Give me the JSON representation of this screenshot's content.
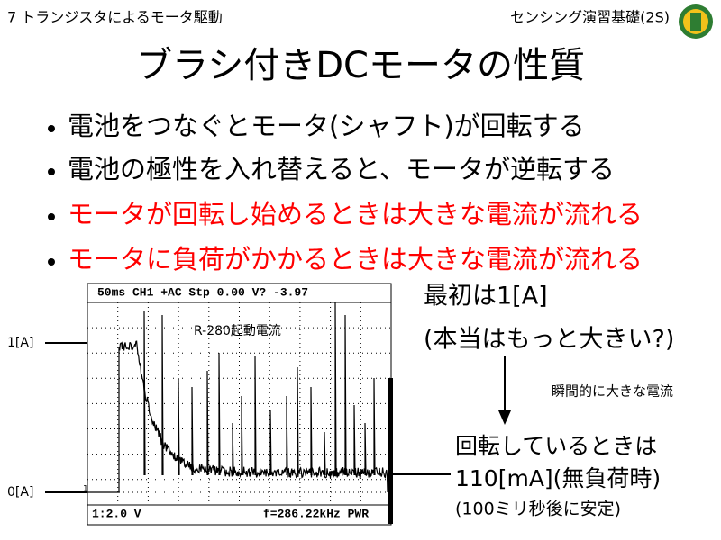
{
  "header": {
    "chapter": "7 トランジスタによるモータ駆動",
    "course": "センシング演習基礎(2S)"
  },
  "title": "ブラシ付きDCモータの性質",
  "bullets": [
    "電池をつなぐとモータ(シャフト)が回転する",
    "電池の極性を入れ替えると、モータが逆転する",
    "モータが回転し始めるときは大きな電流が流れる",
    "モータに負荷がかかるときは大きな電流が流れる"
  ],
  "scope": {
    "status_top": "50ms CH1 +AC  Stp   0.00 V?  -3.97",
    "status_bottom_left": "1:2.0 V",
    "status_bottom_right": "f=286.22kHz PWR",
    "trace_label": "R-280起動電流",
    "marker": "1",
    "level_high": "1[A]",
    "level_zero": "0[A]"
  },
  "notes": {
    "initial": "最初は1[A]",
    "initial_note": "(本当はもっと大きい?)",
    "arrow_label": "瞬間的に大きな電流",
    "steady": "回転しているときは",
    "steady_value": "110[mA](無負荷時)",
    "steady_note": "(100ミリ秒後に安定)"
  }
}
